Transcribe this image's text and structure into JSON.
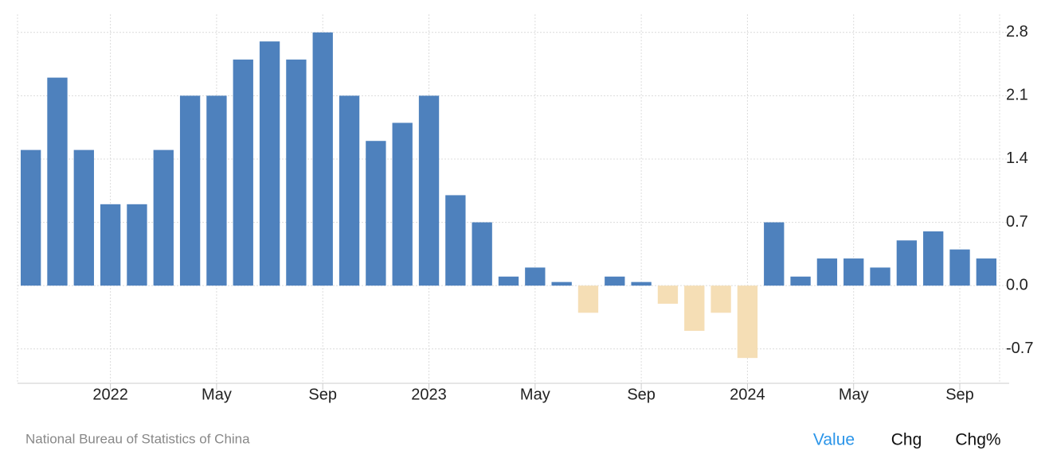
{
  "chart_data": {
    "type": "bar",
    "categories": [
      null,
      null,
      null,
      "2022",
      null,
      null,
      null,
      "May",
      null,
      null,
      null,
      "Sep",
      null,
      null,
      null,
      "2023",
      null,
      null,
      null,
      "May",
      null,
      null,
      null,
      "Sep",
      null,
      null,
      null,
      "2024",
      null,
      null,
      null,
      "May",
      null,
      null,
      null,
      "Sep",
      null
    ],
    "values": [
      1.5,
      2.3,
      1.5,
      0.9,
      0.9,
      1.5,
      2.1,
      2.1,
      2.5,
      2.7,
      2.5,
      2.8,
      2.1,
      1.6,
      1.8,
      2.1,
      1.0,
      0.7,
      0.1,
      0.2,
      0.04,
      -0.3,
      0.1,
      0.04,
      -0.2,
      -0.5,
      -0.3,
      -0.8,
      0.7,
      0.1,
      0.3,
      0.3,
      0.2,
      0.5,
      0.6,
      0.4,
      0.3
    ],
    "color": "#4e81bd",
    "negative_color": "#f5deb5",
    "ylim": [
      -1.08,
      3.0
    ],
    "yticks": [
      {
        "value": -0.7,
        "label": "-0.7"
      },
      {
        "value": 0,
        "label": "0.0"
      },
      0.7,
      1.4,
      2.1,
      2.8
    ],
    "grid": true,
    "source": "National Bureau of Statistics of China",
    "tabs": [
      "Value",
      "Chg",
      "Chg%"
    ],
    "active_tab": 0
  }
}
